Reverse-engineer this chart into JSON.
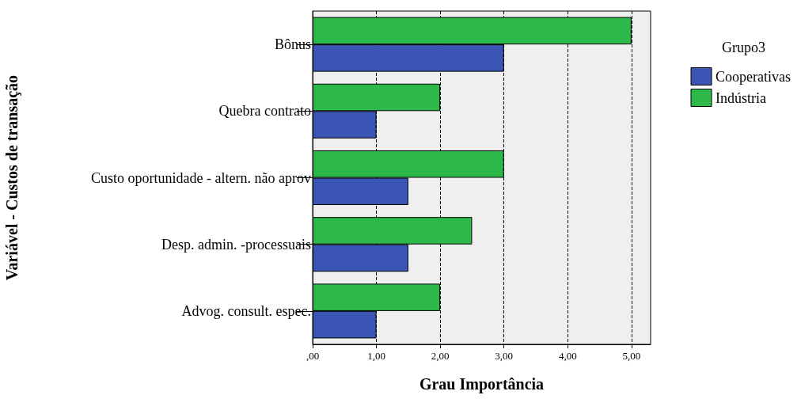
{
  "chart_data": {
    "type": "bar",
    "orientation": "horizontal",
    "xlabel": "Grau Importância",
    "ylabel": "Variável - Custos de transação",
    "legend_title": "Grupo3",
    "categories": [
      "Bônus",
      "Quebra contrato",
      "Custo oportunidade - altern. não aprov",
      "Desp. admin. -processuais",
      "Advog. consult. espec."
    ],
    "series": [
      {
        "name": "Cooperativas",
        "color": "#3a55b4",
        "values": [
          3,
          1,
          1.5,
          1.5,
          1
        ]
      },
      {
        "name": "Indústria",
        "color": "#2db84a",
        "values": [
          5,
          2,
          3,
          2.5,
          2
        ]
      }
    ],
    "xlim": [
      0,
      5.3
    ],
    "xticks": [
      {
        "value": 0,
        "label": ",00"
      },
      {
        "value": 1,
        "label": "1,00"
      },
      {
        "value": 2,
        "label": "2,00"
      },
      {
        "value": 3,
        "label": "3,00"
      },
      {
        "value": 4,
        "label": "4,00"
      },
      {
        "value": 5,
        "label": "5,00"
      }
    ],
    "grid": "x",
    "legend": "right"
  }
}
